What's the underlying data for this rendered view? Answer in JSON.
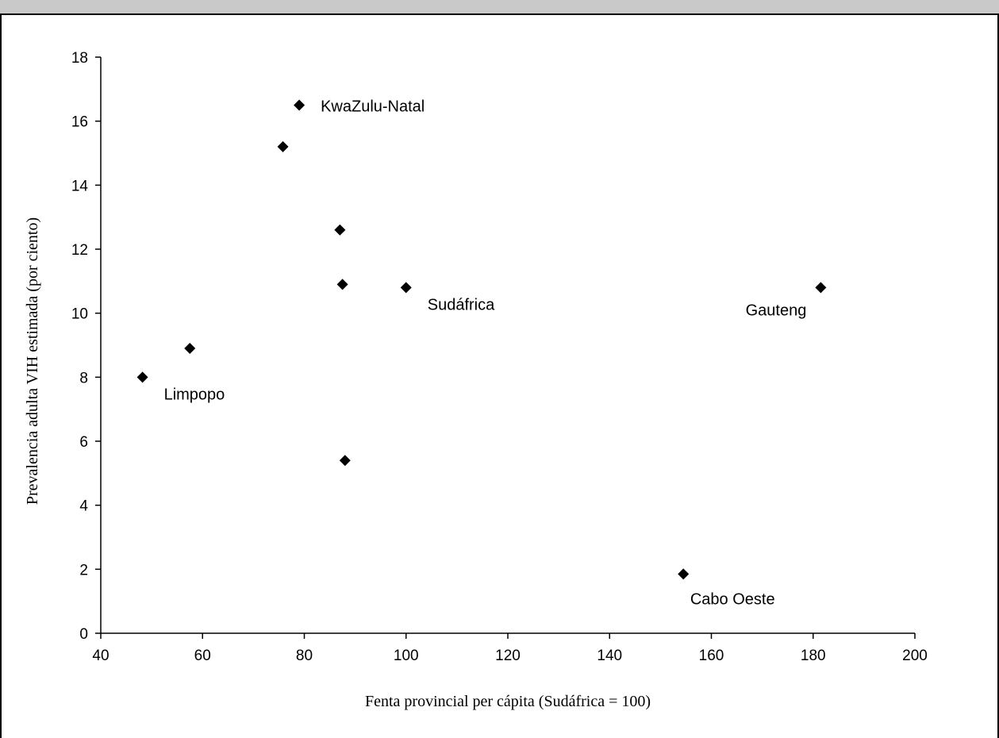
{
  "chart_data": {
    "type": "scatter",
    "xlabel": "Fenta provincial per cápita (Sudáfrica = 100)",
    "ylabel": "Prevalencia adulta VIH estimada (por ciento)",
    "xlim": [
      40,
      200
    ],
    "ylim": [
      0,
      18
    ],
    "xticks": [
      40,
      60,
      80,
      100,
      120,
      140,
      160,
      180,
      200
    ],
    "yticks": [
      0,
      2,
      4,
      6,
      8,
      10,
      12,
      14,
      16,
      18
    ],
    "grid": false,
    "marker": "diamond",
    "marker_color": "#000000",
    "points": [
      {
        "x": 48.2,
        "y": 8.0,
        "label": "Limpopo",
        "label_pos": "below-right"
      },
      {
        "x": 57.5,
        "y": 8.9,
        "label": ""
      },
      {
        "x": 75.8,
        "y": 15.2,
        "label": ""
      },
      {
        "x": 79.0,
        "y": 16.5,
        "label": "KwaZulu-Natal",
        "label_pos": "right"
      },
      {
        "x": 87.0,
        "y": 12.6,
        "label": ""
      },
      {
        "x": 87.5,
        "y": 10.9,
        "label": ""
      },
      {
        "x": 88.0,
        "y": 5.4,
        "label": ""
      },
      {
        "x": 100.0,
        "y": 10.8,
        "label": "Sudáfrica",
        "label_pos": "below-right"
      },
      {
        "x": 154.5,
        "y": 1.85,
        "label": "Cabo Oeste",
        "label_pos": "below"
      },
      {
        "x": 181.5,
        "y": 10.8,
        "label": "Gauteng",
        "label_pos": "below-left"
      }
    ]
  }
}
